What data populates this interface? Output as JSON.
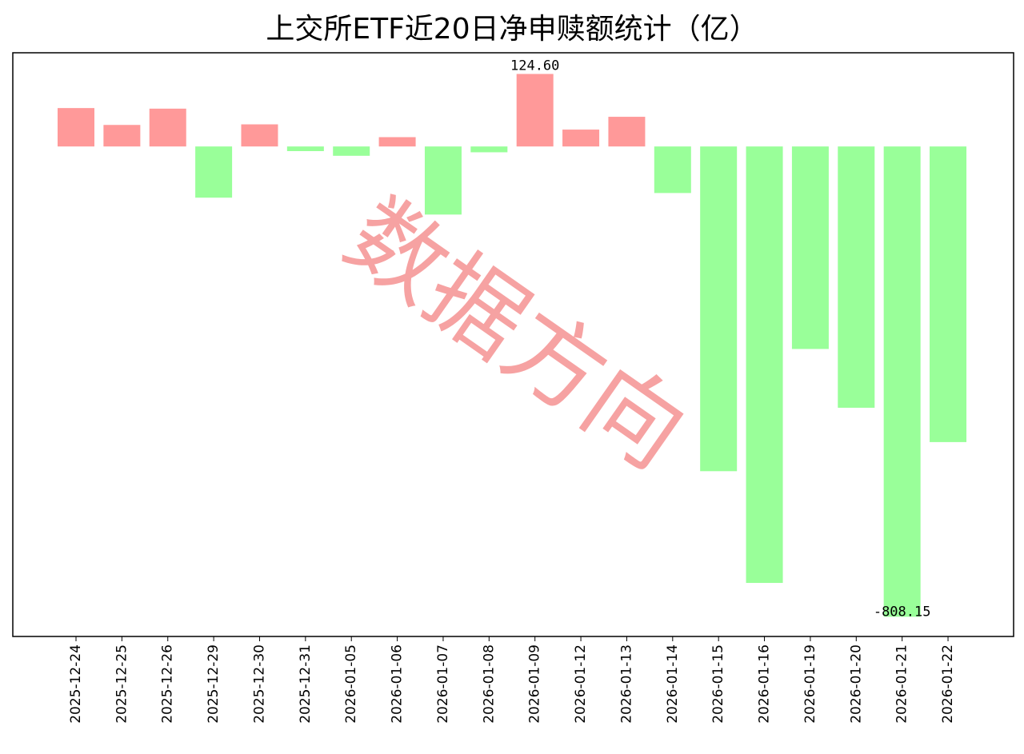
{
  "chart_data": {
    "type": "bar",
    "title": "上交所ETF近20日净申赎额统计（亿）",
    "watermark": "数据方向",
    "categories": [
      "2025-12-24",
      "2025-12-25",
      "2025-12-26",
      "2025-12-29",
      "2025-12-30",
      "2025-12-31",
      "2026-01-05",
      "2026-01-06",
      "2026-01-07",
      "2026-01-08",
      "2026-01-09",
      "2026-01-12",
      "2026-01-13",
      "2026-01-14",
      "2026-01-15",
      "2026-01-16",
      "2026-01-19",
      "2026-01-20",
      "2026-01-21",
      "2026-01-22"
    ],
    "values": [
      66,
      37,
      65,
      -88,
      38,
      -8,
      -16,
      16,
      -117,
      -10,
      124.6,
      29,
      51,
      -80,
      -558,
      -750,
      -348,
      -449,
      -808.15,
      -508
    ],
    "value_labels": [
      null,
      null,
      null,
      null,
      null,
      null,
      null,
      null,
      null,
      null,
      "124.60",
      null,
      null,
      null,
      null,
      null,
      null,
      null,
      "-808.15",
      null
    ],
    "positive_color": "#ff9999",
    "negative_color": "#99ff99",
    "ylim": [
      -842,
      161
    ]
  }
}
